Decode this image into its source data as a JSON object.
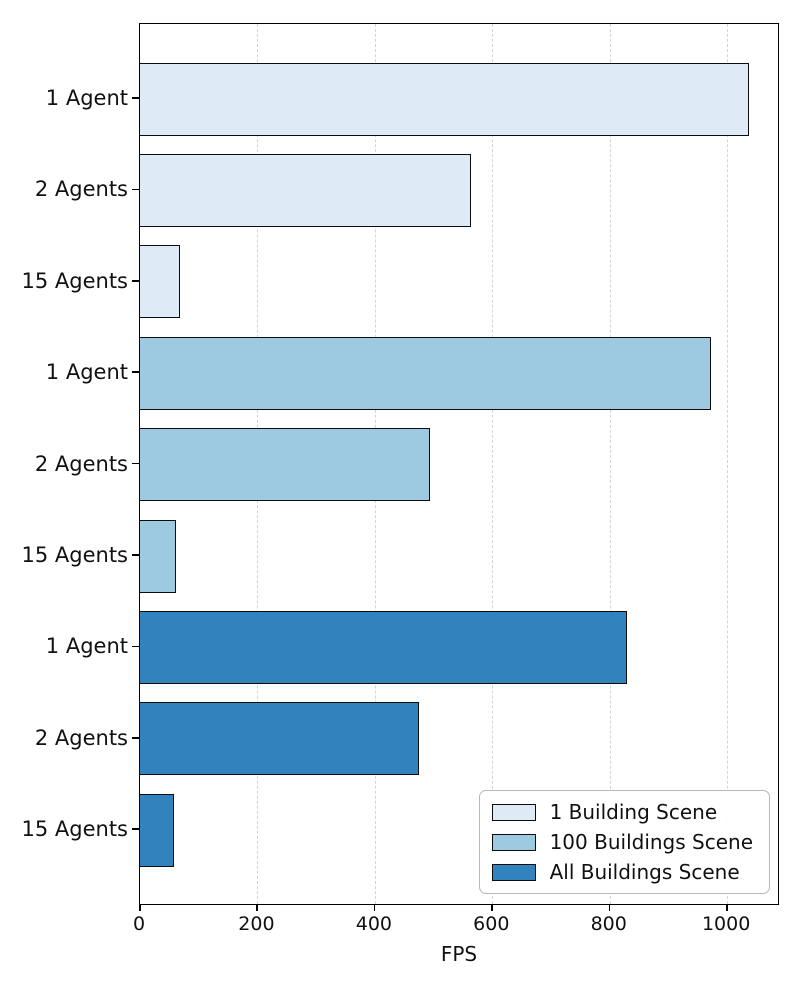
{
  "chart_data": {
    "type": "bar",
    "orientation": "horizontal",
    "title": "",
    "xlabel": "FPS",
    "ylabel": "",
    "xlim": [
      0,
      1090
    ],
    "x_ticks": [
      0,
      200,
      400,
      600,
      800,
      1000
    ],
    "grid": "vertical-dashed",
    "legend_position": "lower right",
    "bar_edge_color": "#0d0d0d",
    "categories": [
      "1 Agent",
      "2 Agents",
      "15 Agents"
    ],
    "series": [
      {
        "name": "1 Building Scene",
        "color": "#deebf7",
        "values": [
          1037,
          564,
          68
        ]
      },
      {
        "name": "100 Buildings Scene",
        "color": "#9ecae1",
        "values": [
          973,
          494,
          61
        ]
      },
      {
        "name": "All Buildings Scene",
        "color": "#3182bd",
        "values": [
          829,
          475,
          58
        ]
      }
    ]
  }
}
